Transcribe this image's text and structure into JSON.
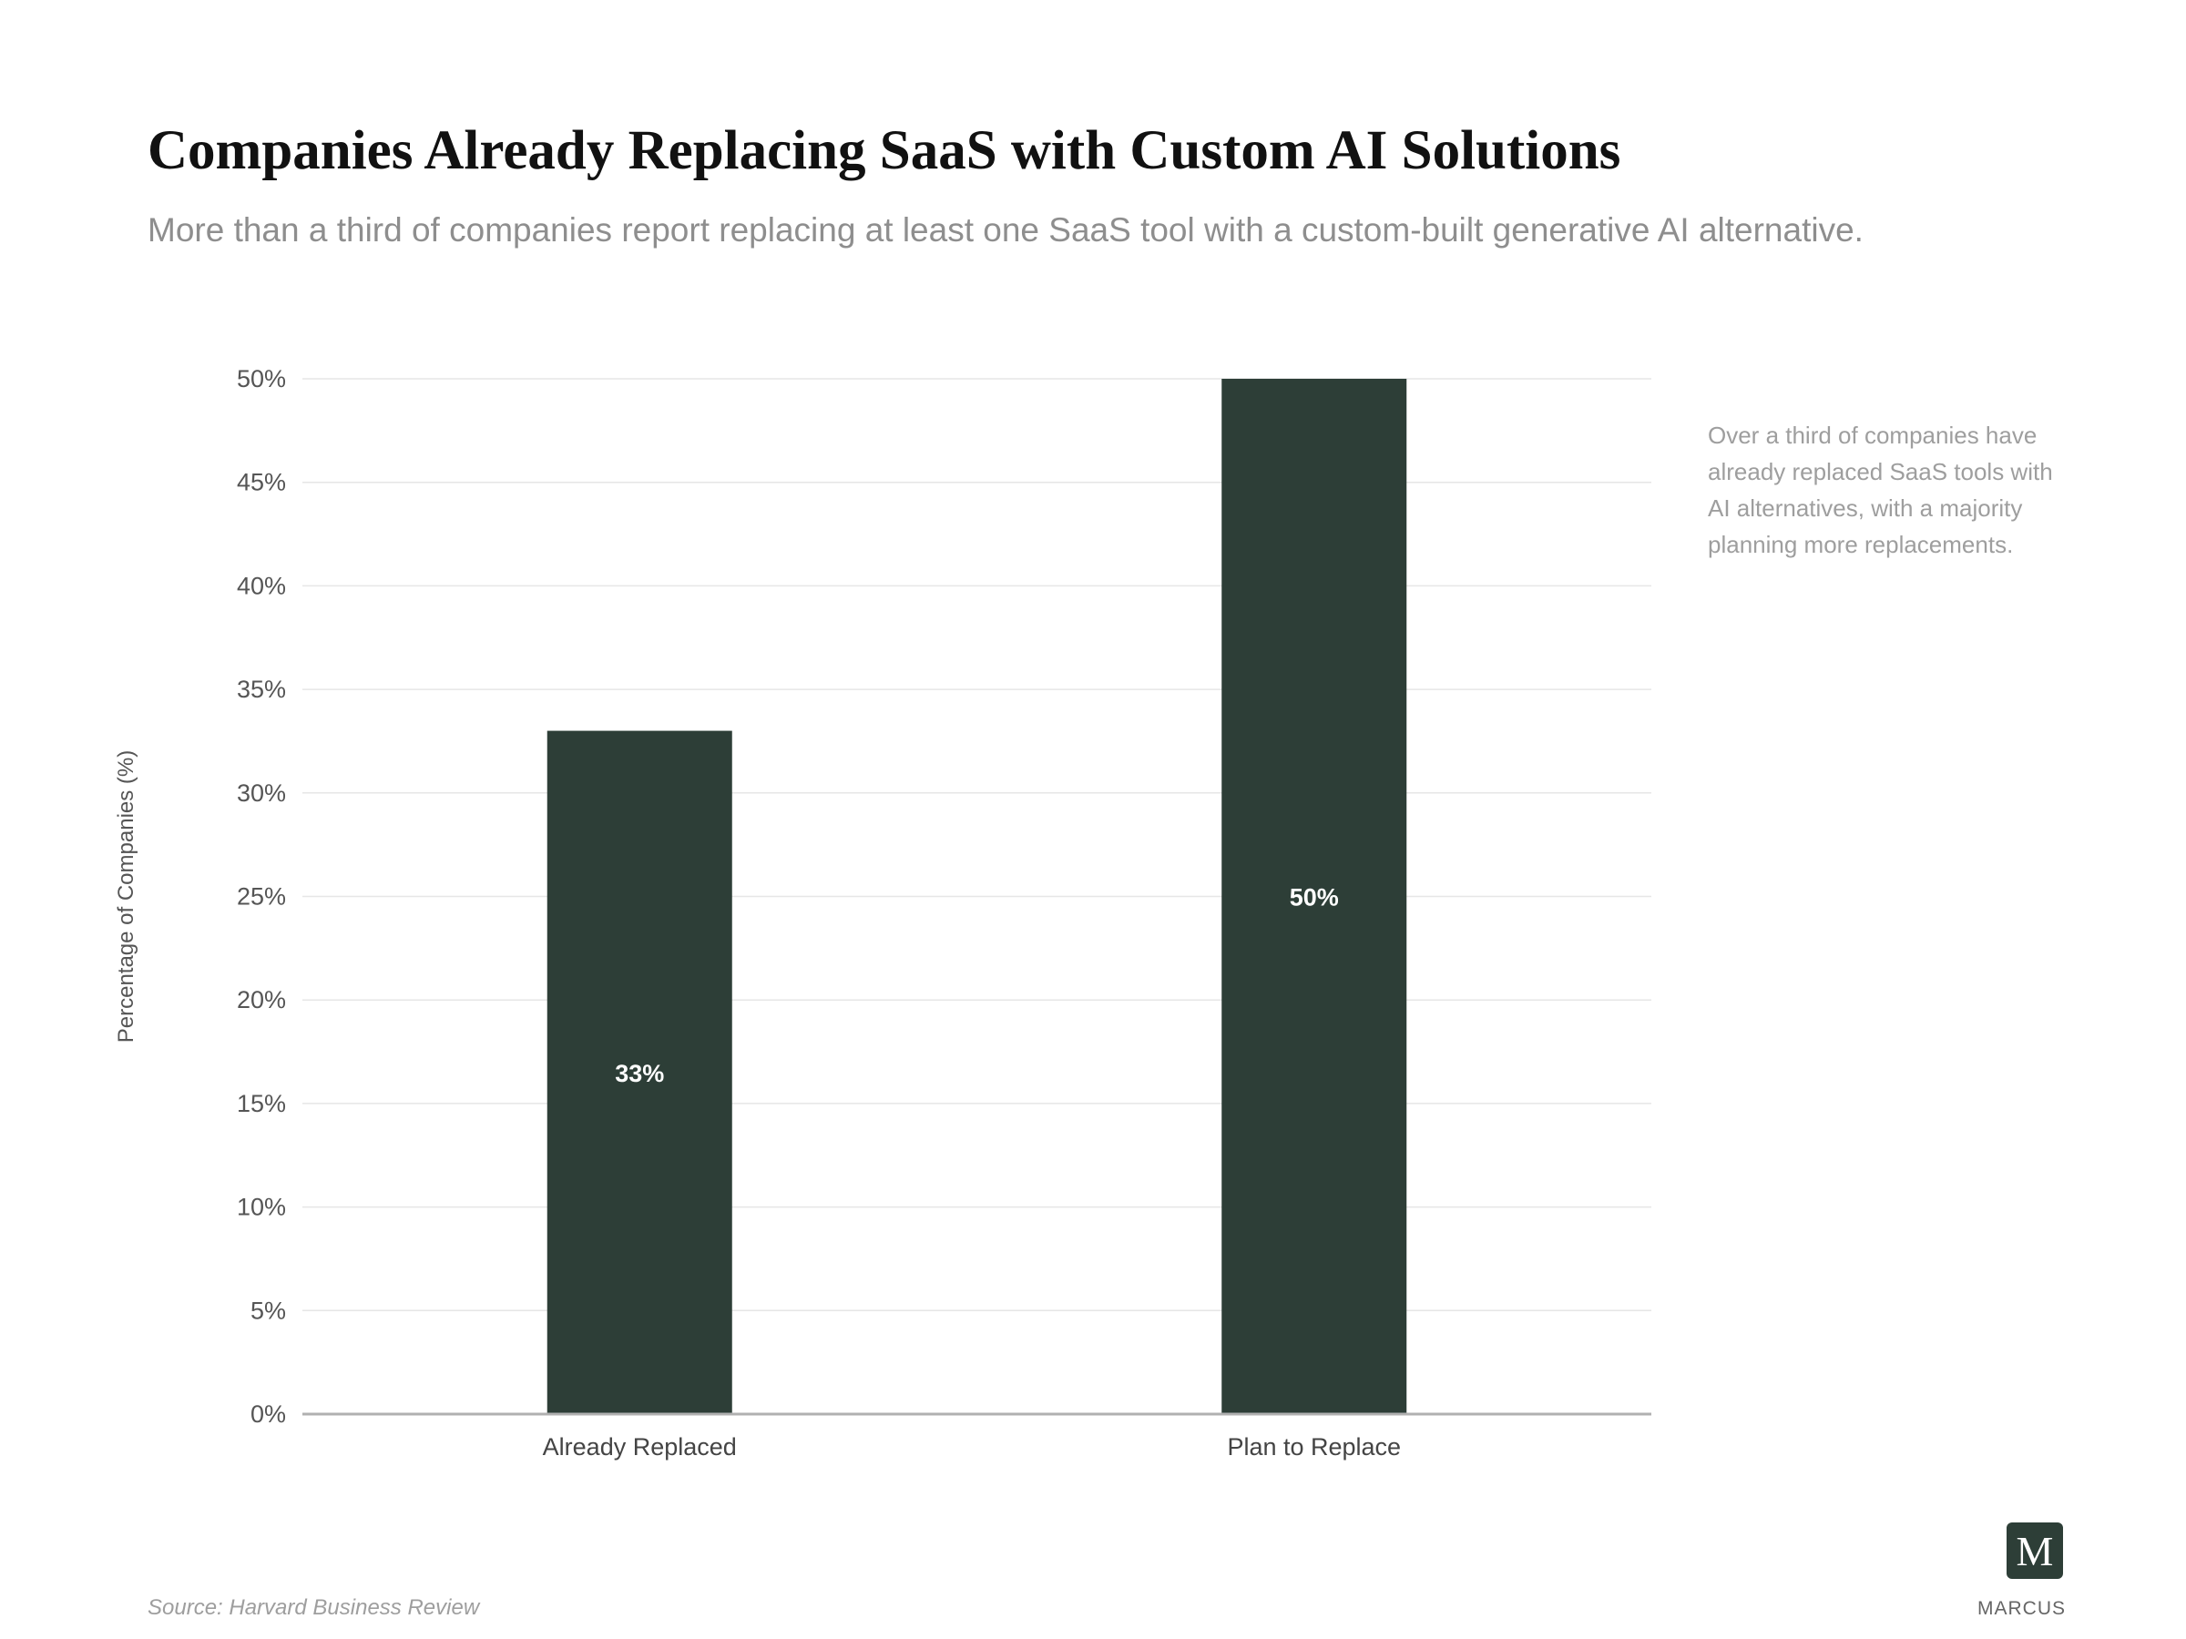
{
  "chart_data": {
    "type": "bar",
    "title": "Companies Already Replacing SaaS with Custom AI Solutions",
    "subtitle": "More than a third of companies report replacing at least one SaaS tool with a custom-built generative AI alternative.",
    "categories": [
      "Already Replaced",
      "Plan to Replace"
    ],
    "values": [
      33,
      50
    ],
    "data_labels": [
      "33%",
      "50%"
    ],
    "ylabel": "Percentage of Companies (%)",
    "xlabel": "",
    "ylim": [
      0,
      50
    ],
    "yticks": [
      0,
      5,
      10,
      15,
      20,
      25,
      30,
      35,
      40,
      45,
      50
    ],
    "ytick_labels": [
      "0%",
      "5%",
      "10%",
      "15%",
      "20%",
      "25%",
      "30%",
      "35%",
      "40%",
      "45%",
      "50%"
    ],
    "grid": true,
    "bar_color": "#2d3e37",
    "annotation": "Over a third of companies have already replaced SaaS tools with AI alternatives, with a majority planning more replacements.",
    "source": "Source: Harvard Business Review"
  },
  "brand": {
    "logo_letter": "M",
    "name": "MARCUS",
    "color": "#2d3e37"
  }
}
